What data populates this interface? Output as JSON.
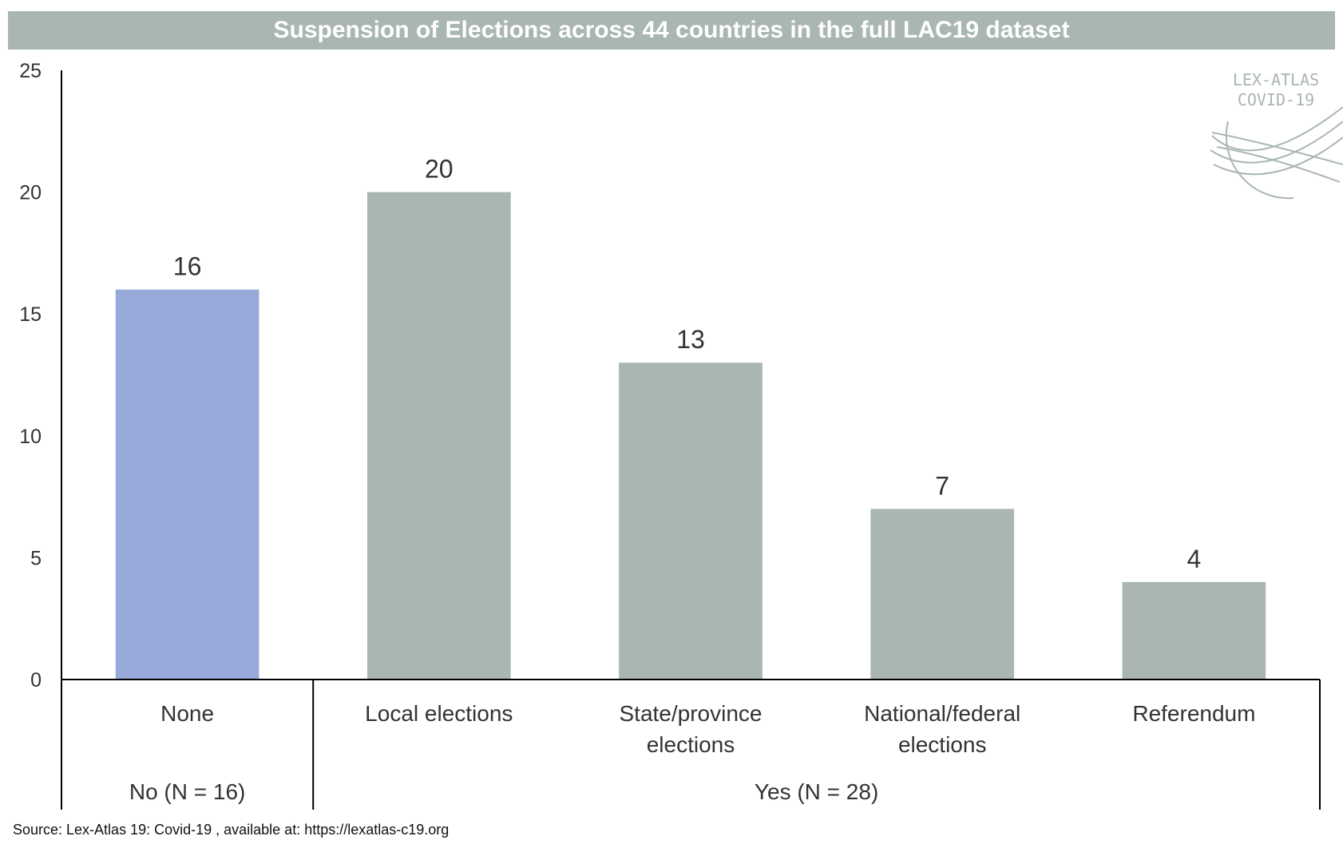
{
  "title": "Suspension of Elections across 44 countries in the full LAC19 dataset",
  "source": "Source: Lex-Atlas 19: Covid-19 , available at: https://lexatlas-c19.org",
  "logo": {
    "line1": "LEX-ATLAS",
    "line2": "COVID-19",
    "icon": "globe-icon"
  },
  "colors": {
    "title_bg": "#a9b6b3",
    "none_bar": "#96a9d8",
    "yes_bar": "#a9b6b3"
  },
  "chart_data": {
    "type": "bar",
    "categories": [
      "None",
      "Local elections",
      "State/province elections",
      "National/federal elections",
      "Referendum"
    ],
    "category_lines": [
      [
        "None"
      ],
      [
        "Local elections"
      ],
      [
        "State/province",
        "elections"
      ],
      [
        "National/federal",
        "elections"
      ],
      [
        "Referendum"
      ]
    ],
    "values": [
      16,
      20,
      13,
      7,
      4
    ],
    "data_labels": [
      "16",
      "20",
      "13",
      "7",
      "4"
    ],
    "groups": [
      {
        "label": "No (N = 16)",
        "categories": [
          "None"
        ]
      },
      {
        "label": "Yes (N = 28)",
        "categories": [
          "Local elections",
          "State/province elections",
          "National/federal elections",
          "Referendum"
        ]
      }
    ],
    "yticks": [
      0,
      5,
      10,
      15,
      20,
      25
    ],
    "ylim": [
      0,
      25
    ],
    "grid": false,
    "legend": "none"
  }
}
